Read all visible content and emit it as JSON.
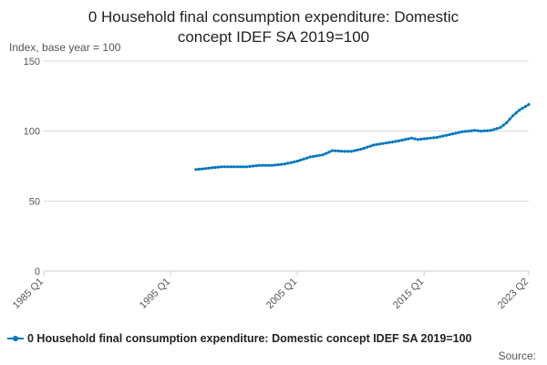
{
  "title_line1": "0 Household final consumption expenditure: Domestic",
  "title_line2": "concept IDEF SA 2019=100",
  "ylabel": "Index, base year = 100",
  "source_label": "Source:",
  "colors": {
    "series": "#0076c0",
    "grid": "#d9d9d9",
    "axis": "#cccccc",
    "tick_text": "#555555"
  },
  "chart_data": {
    "type": "line",
    "title": "0 Household final consumption expenditure: Domestic concept IDEF SA 2019=100",
    "ylabel": "Index, base year = 100",
    "xlabel": "",
    "ylim": [
      0,
      150
    ],
    "yticks": [
      0,
      50,
      100,
      150
    ],
    "xlim": [
      "1985 Q1",
      "2023 Q2"
    ],
    "xticks": [
      "1985 Q1",
      "1995 Q1",
      "2005 Q1",
      "2015 Q1",
      "2023 Q2"
    ],
    "grid": "horizontal",
    "legend": "bottom",
    "series": [
      {
        "name": "0 Household final consumption expenditure: Domestic concept IDEF SA 2019=100",
        "x_start": "1997 Q1",
        "x_end": "2023 Q2",
        "frequency": "quarterly",
        "keyframes": [
          [
            "1997 Q1",
            72.5
          ],
          [
            "1998 Q1",
            73.5
          ],
          [
            "1999 Q1",
            74.5
          ],
          [
            "2000 Q1",
            74.5
          ],
          [
            "2001 Q1",
            74.5
          ],
          [
            "2002 Q1",
            75.5
          ],
          [
            "2003 Q1",
            75.5
          ],
          [
            "2004 Q1",
            76.5
          ],
          [
            "2005 Q1",
            78.5
          ],
          [
            "2006 Q1",
            81.5
          ],
          [
            "2007 Q1",
            83
          ],
          [
            "2007 Q4",
            86
          ],
          [
            "2008 Q4",
            85.5
          ],
          [
            "2009 Q2",
            85.5
          ],
          [
            "2010 Q1",
            87
          ],
          [
            "2011 Q1",
            90
          ],
          [
            "2012 Q1",
            91.5
          ],
          [
            "2013 Q1",
            93
          ],
          [
            "2014 Q1",
            95
          ],
          [
            "2014 Q3",
            94
          ],
          [
            "2015 Q1",
            94.5
          ],
          [
            "2016 Q1",
            95.5
          ],
          [
            "2017 Q1",
            97.5
          ],
          [
            "2018 Q1",
            99.5
          ],
          [
            "2019 Q1",
            100.5
          ],
          [
            "2019 Q3",
            100
          ],
          [
            "2020 Q2",
            100.5
          ],
          [
            "2021 Q1",
            102.5
          ],
          [
            "2021 Q3",
            106
          ],
          [
            "2022 Q1",
            111
          ],
          [
            "2022 Q3",
            115
          ],
          [
            "2023 Q2",
            119
          ]
        ]
      }
    ]
  }
}
